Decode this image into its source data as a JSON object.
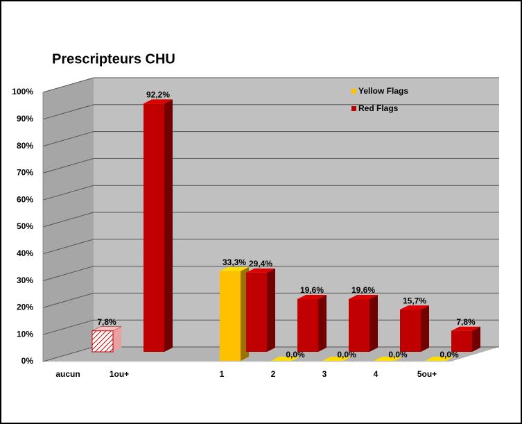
{
  "chart_data": {
    "type": "bar3d",
    "title": "Prescripteurs CHU",
    "categories": [
      "aucun",
      "1ou+",
      null,
      "1",
      "2",
      "3",
      "4",
      "5ou+"
    ],
    "series": [
      {
        "name": "Yellow Flags",
        "color": "#ffc000",
        "values": [
          null,
          null,
          null,
          33.3,
          0,
          0,
          0,
          0
        ],
        "value_labels": [
          null,
          null,
          null,
          "33,3%",
          "0,0%",
          "0,0%",
          "0,0%",
          "0,0%"
        ]
      },
      {
        "name": "Red Flags",
        "color": "#c00000",
        "values": [
          7.8,
          92.2,
          null,
          29.4,
          19.6,
          19.6,
          15.7,
          7.8
        ],
        "value_labels": [
          "7,8%",
          "92,2%",
          null,
          "29,4%",
          "19,6%",
          "19,6%",
          "15,7%",
          "7,8%"
        ]
      }
    ],
    "ylim": [
      0,
      100
    ],
    "yticks": [
      {
        "value": 0,
        "label": "0%"
      },
      {
        "value": 10,
        "label": "10%"
      },
      {
        "value": 20,
        "label": "20%"
      },
      {
        "value": 30,
        "label": "30%"
      },
      {
        "value": 40,
        "label": "40%"
      },
      {
        "value": 50,
        "label": "50%"
      },
      {
        "value": 60,
        "label": "60%"
      },
      {
        "value": 70,
        "label": "70%"
      },
      {
        "value": 80,
        "label": "80%"
      },
      {
        "value": 90,
        "label": "90%"
      },
      {
        "value": 100,
        "label": "100%"
      }
    ],
    "grid": true,
    "legend": "top-right"
  }
}
